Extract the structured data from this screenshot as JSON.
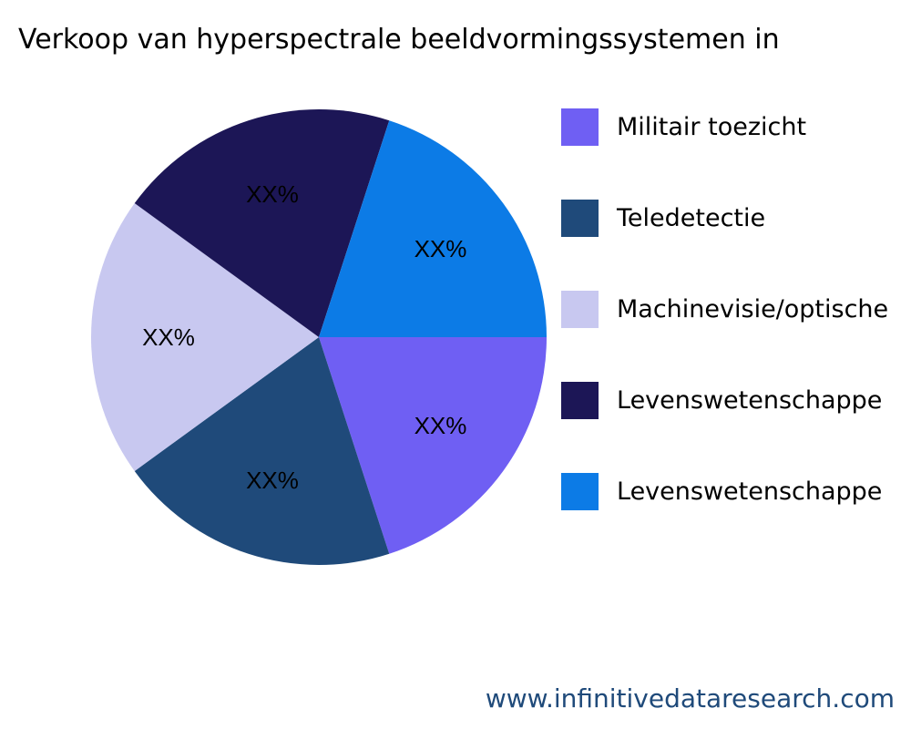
{
  "chart_data": {
    "type": "pie",
    "title": "Verkoop van hyperspectrale beeldvormingssystemen in",
    "categories": [
      "Militair toezicht",
      "Teledetectie",
      "Machinevisie/optische",
      "Levenswetenschappe",
      "Levenswetenschappe"
    ],
    "values": [
      20,
      20,
      20,
      20,
      20
    ],
    "data_labels": [
      "XX%",
      "XX%",
      "XX%",
      "XX%",
      "XX%"
    ],
    "colors": [
      "#6F5FF3",
      "#1F4A7A",
      "#C8C8F0",
      "#1C1656",
      "#0C7BE6"
    ],
    "legend_position": "right"
  },
  "footer": "www.infinitivedataresearch.com"
}
